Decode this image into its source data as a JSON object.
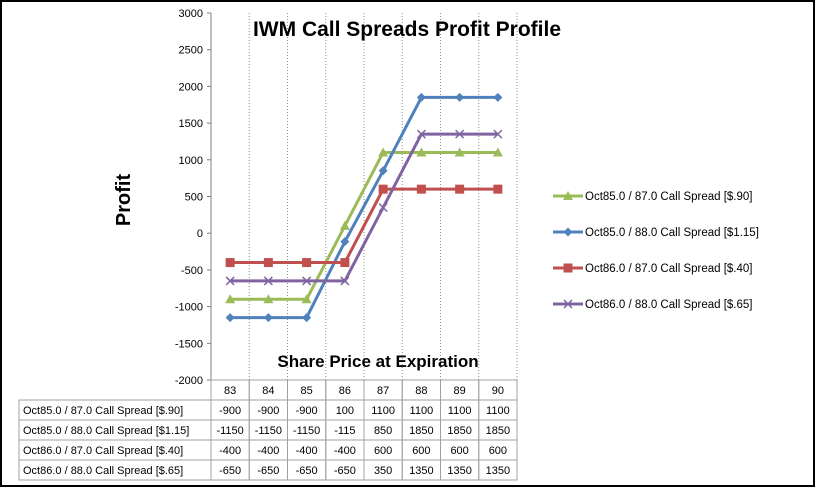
{
  "chart_data": {
    "type": "line",
    "title": "IWM Call Spreads Profit Profile",
    "xlabel": "Share Price at Expiration",
    "ylabel": "Profit",
    "categories": [
      "83",
      "84",
      "85",
      "86",
      "87",
      "88",
      "89",
      "90"
    ],
    "ylim": [
      -2000,
      3000
    ],
    "ytick_step": 500,
    "yticks": [
      "3000",
      "2500",
      "2000",
      "1500",
      "1000",
      "500",
      "0",
      "-500",
      "-1000",
      "-1500",
      "-2000"
    ],
    "grid": "vertical dotted",
    "legend_position": "right",
    "series": [
      {
        "name": "Oct85.0 / 87.0 Call Spread [$.90]",
        "color": "#9BBB59",
        "marker": "triangle",
        "values": [
          -900,
          -900,
          -900,
          100,
          1100,
          1100,
          1100,
          1100
        ],
        "labels": [
          "-900",
          "-900",
          "-900",
          "100",
          "1100",
          "1100",
          "1100",
          "1100"
        ]
      },
      {
        "name": "Oct85.0 / 88.0 Call Spread [$1.15]",
        "color": "#4F81BD",
        "marker": "diamond",
        "values": [
          -1150,
          -1150,
          -1150,
          -115,
          850,
          1850,
          1850,
          1850
        ],
        "labels": [
          "-1150",
          "-1150",
          "-1150",
          "-115",
          "850",
          "1850",
          "1850",
          "1850"
        ]
      },
      {
        "name": "Oct86.0 / 87.0 Call Spread [$.40]",
        "color": "#C0504D",
        "marker": "square",
        "values": [
          -400,
          -400,
          -400,
          -400,
          600,
          600,
          600,
          600
        ],
        "labels": [
          "-400",
          "-400",
          "-400",
          "-400",
          "600",
          "600",
          "600",
          "600"
        ]
      },
      {
        "name": "Oct86.0 / 88.0 Call Spread [$.65]",
        "color": "#8064A2",
        "marker": "x",
        "values": [
          -650,
          -650,
          -650,
          -650,
          350,
          1350,
          1350,
          1350
        ],
        "labels": [
          "-650",
          "-650",
          "-650",
          "-650",
          "350",
          "1350",
          "1350",
          "1350"
        ]
      }
    ]
  }
}
